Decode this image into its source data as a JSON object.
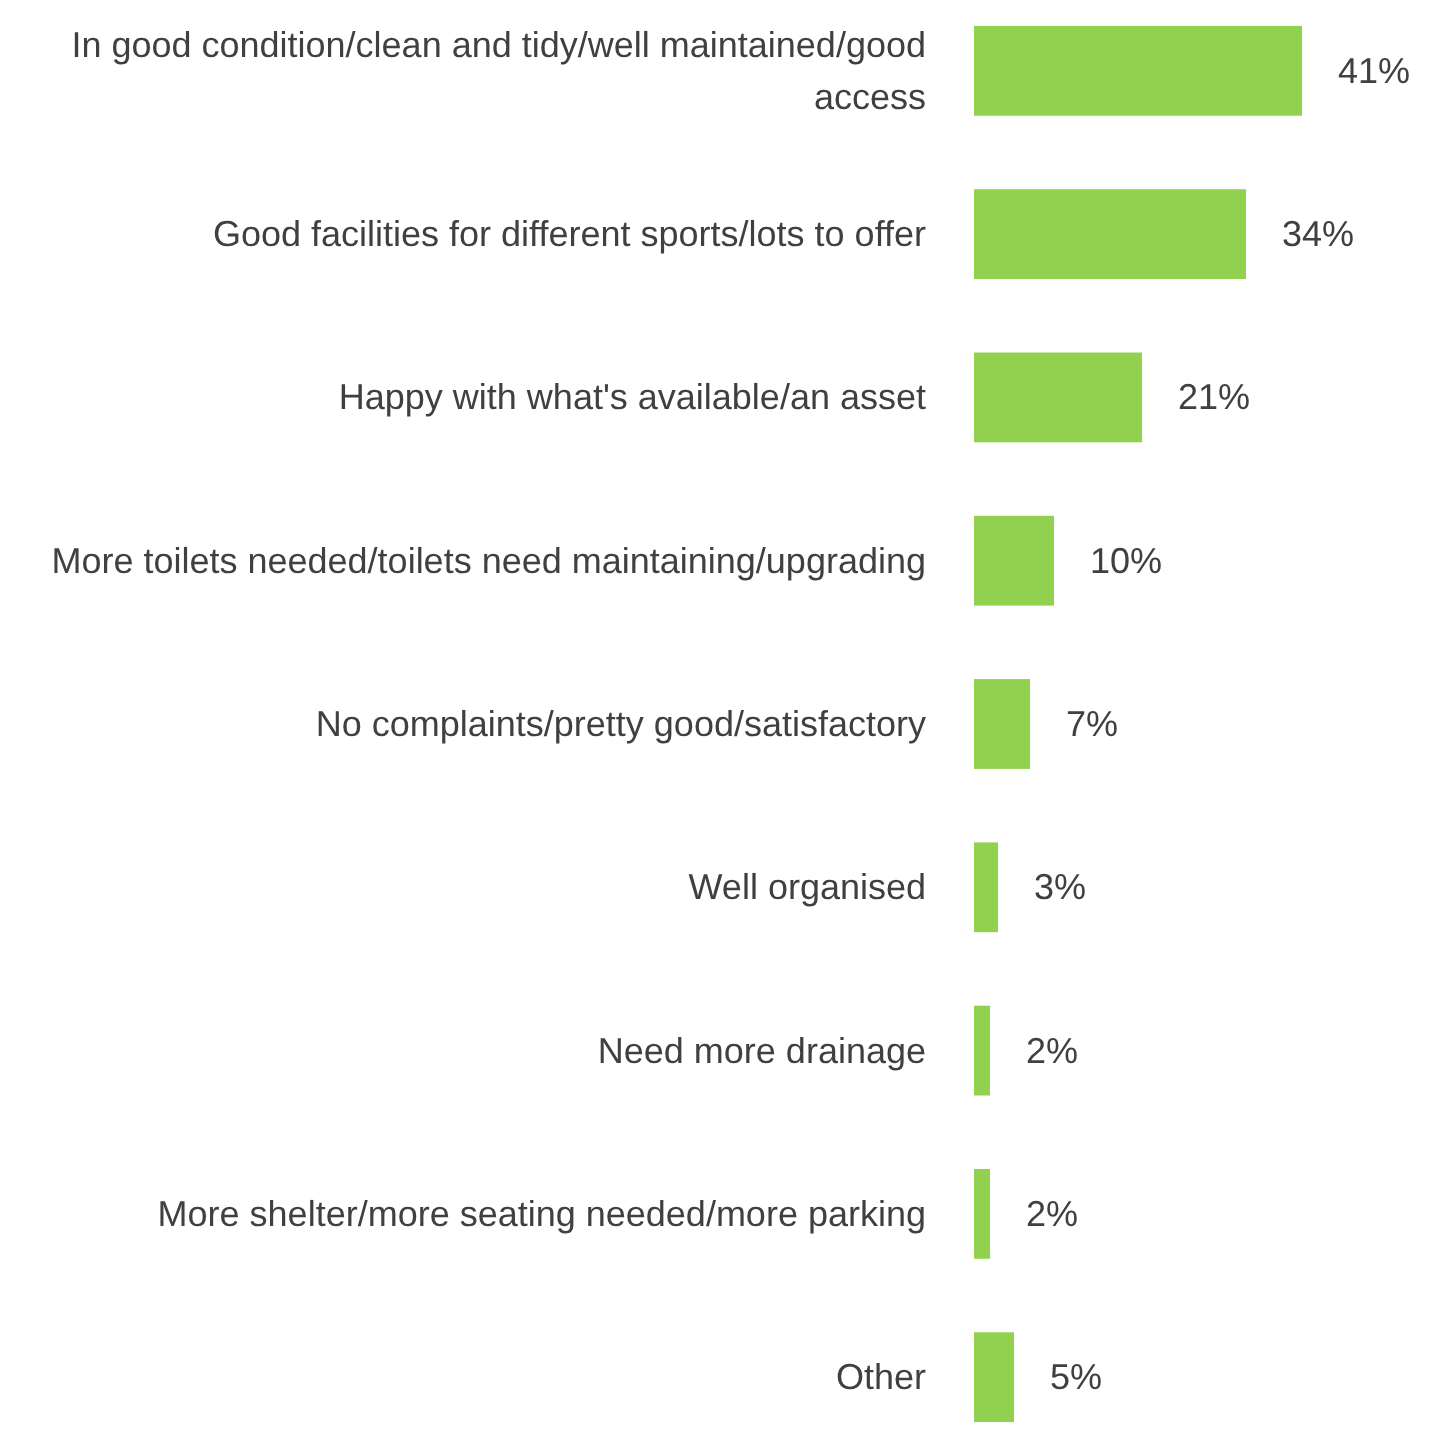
{
  "chart_data": {
    "type": "bar",
    "orientation": "horizontal",
    "categories": [
      "In good condition/clean and tidy/well maintained/good access",
      "Good facilities for different sports/lots to offer",
      "Happy with what's available/an asset",
      "More toilets needed/toilets need maintaining/upgrading",
      "No complaints/pretty good/satisfactory",
      "Well organised",
      "Need more drainage",
      "More shelter/more seating needed/more parking",
      "Other"
    ],
    "values": [
      41,
      34,
      21,
      10,
      7,
      3,
      2,
      2,
      5
    ],
    "value_labels": [
      "41%",
      "34%",
      "21%",
      "10%",
      "7%",
      "3%",
      "2%",
      "2%",
      "5%"
    ],
    "color": "#92d050"
  }
}
